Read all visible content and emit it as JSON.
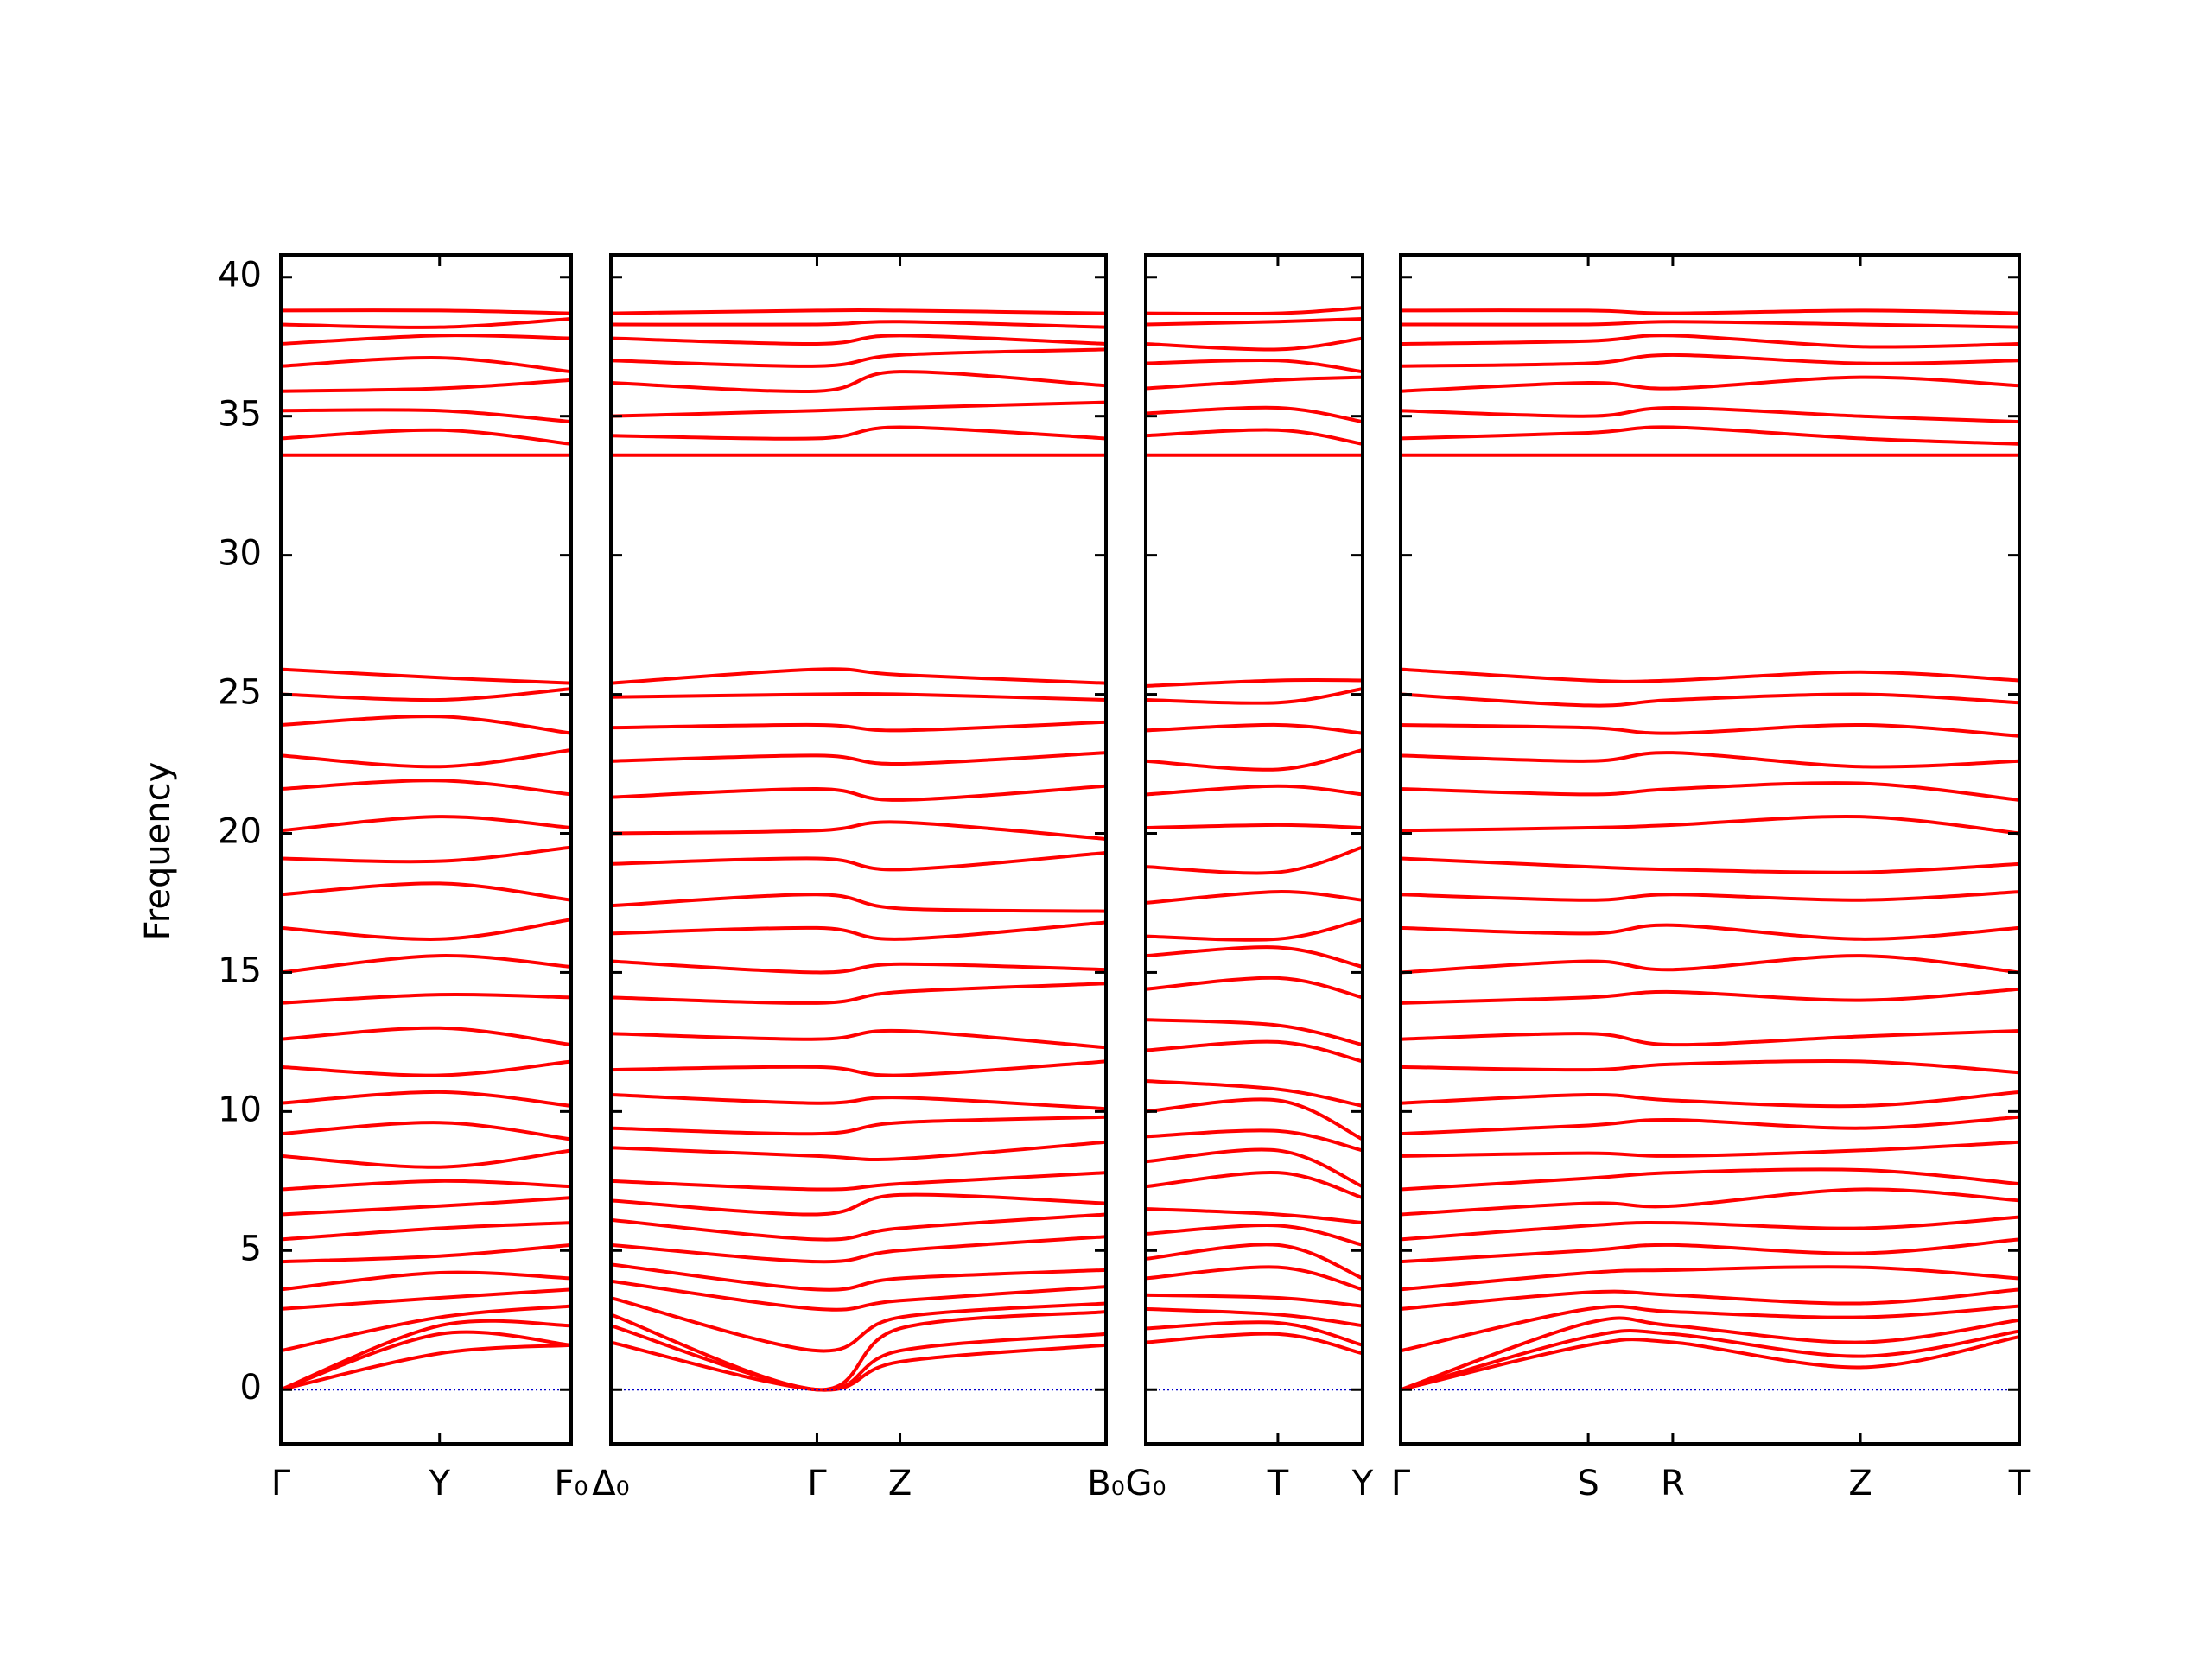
{
  "chart_data": [
    {
      "type": "line",
      "ylabel": "Frequency",
      "color": "#ff0000",
      "hline": 0,
      "hline_color": "#0000cc",
      "show_ytick_labels": true,
      "xlim": [
        0,
        2.03
      ],
      "xticks": [
        {
          "value": 0,
          "label": "Γ"
        },
        {
          "value": 1.11,
          "label": "Y"
        },
        {
          "value": 2.03,
          "label": "F₀"
        }
      ],
      "ylim": [
        -1.95,
        40.8
      ],
      "yticks": [
        0,
        5,
        10,
        15,
        20,
        25,
        30,
        35,
        40
      ],
      "x": [
        0,
        1.11,
        2.03
      ],
      "series": [
        {
          "values": [
            0,
            1.3,
            1.6
          ]
        },
        {
          "values": [
            0,
            2.0,
            1.6
          ]
        },
        {
          "values": [
            0,
            2.3,
            2.3
          ]
        },
        {
          "values": [
            1.4,
            2.6,
            3.0
          ]
        },
        {
          "values": [
            2.9,
            3.3,
            3.6
          ]
        },
        {
          "values": [
            3.6,
            4.2,
            4.0
          ]
        },
        {
          "values": [
            4.6,
            4.8,
            5.2
          ]
        },
        {
          "values": [
            5.4,
            5.8,
            6.0
          ]
        },
        {
          "values": [
            6.3,
            6.6,
            6.9
          ]
        },
        {
          "values": [
            7.2,
            7.5,
            7.3
          ]
        },
        {
          "values": [
            8.4,
            8.0,
            8.6
          ]
        },
        {
          "values": [
            9.2,
            9.6,
            9.0
          ]
        },
        {
          "values": [
            10.3,
            10.7,
            10.2
          ]
        },
        {
          "values": [
            11.6,
            11.3,
            11.8
          ]
        },
        {
          "values": [
            12.6,
            13.0,
            12.4
          ]
        },
        {
          "values": [
            13.9,
            14.2,
            14.1
          ]
        },
        {
          "values": [
            15.0,
            15.6,
            15.2
          ]
        },
        {
          "values": [
            16.6,
            16.2,
            16.9
          ]
        },
        {
          "values": [
            17.8,
            18.2,
            17.6
          ]
        },
        {
          "values": [
            19.1,
            19.0,
            19.5
          ]
        },
        {
          "values": [
            20.1,
            20.6,
            20.2
          ]
        },
        {
          "values": [
            21.6,
            21.9,
            21.4
          ]
        },
        {
          "values": [
            22.8,
            22.4,
            23.0
          ]
        },
        {
          "values": [
            23.9,
            24.2,
            23.6
          ]
        },
        {
          "values": [
            25.0,
            24.8,
            25.2
          ]
        },
        {
          "values": [
            25.9,
            25.6,
            25.4
          ]
        },
        {
          "values": [
            33.6,
            33.6,
            33.6
          ]
        },
        {
          "values": [
            34.2,
            34.5,
            34.0
          ]
        },
        {
          "values": [
            35.2,
            35.2,
            34.8
          ]
        },
        {
          "values": [
            35.9,
            36.0,
            36.3
          ]
        },
        {
          "values": [
            36.8,
            37.1,
            36.6
          ]
        },
        {
          "values": [
            37.6,
            37.9,
            37.8
          ]
        },
        {
          "values": [
            38.3,
            38.2,
            38.5
          ]
        },
        {
          "values": [
            38.8,
            38.8,
            38.7
          ]
        }
      ]
    },
    {
      "type": "line",
      "color": "#ff0000",
      "hline": 0,
      "hline_color": "#0000cc",
      "show_ytick_labels": false,
      "xlim": [
        0,
        3.46
      ],
      "xticks": [
        {
          "value": 0,
          "label": "Δ₀"
        },
        {
          "value": 1.44,
          "label": "Γ"
        },
        {
          "value": 2.02,
          "label": "Z"
        },
        {
          "value": 3.46,
          "label": "B₀"
        }
      ],
      "ylim": [
        -1.95,
        40.8
      ],
      "yticks": [
        0,
        5,
        10,
        15,
        20,
        25,
        30,
        35,
        40
      ],
      "x": [
        0,
        1.44,
        2.02,
        3.46
      ],
      "series": [
        {
          "values": [
            1.7,
            0,
            1.0,
            1.6
          ]
        },
        {
          "values": [
            2.3,
            0,
            1.4,
            2.0
          ]
        },
        {
          "values": [
            2.7,
            0,
            2.2,
            2.8
          ]
        },
        {
          "values": [
            3.3,
            1.4,
            2.6,
            3.1
          ]
        },
        {
          "values": [
            3.9,
            2.9,
            3.2,
            3.7
          ]
        },
        {
          "values": [
            4.5,
            3.6,
            4.0,
            4.3
          ]
        },
        {
          "values": [
            5.2,
            4.6,
            5.0,
            5.5
          ]
        },
        {
          "values": [
            6.1,
            5.4,
            5.8,
            6.3
          ]
        },
        {
          "values": [
            6.8,
            6.3,
            7.0,
            6.7
          ]
        },
        {
          "values": [
            7.5,
            7.2,
            7.4,
            7.8
          ]
        },
        {
          "values": [
            8.7,
            8.4,
            8.3,
            8.9
          ]
        },
        {
          "values": [
            9.4,
            9.2,
            9.6,
            9.8
          ]
        },
        {
          "values": [
            10.6,
            10.3,
            10.5,
            10.1
          ]
        },
        {
          "values": [
            11.5,
            11.6,
            11.3,
            11.8
          ]
        },
        {
          "values": [
            12.8,
            12.6,
            12.9,
            12.3
          ]
        },
        {
          "values": [
            14.1,
            13.9,
            14.3,
            14.6
          ]
        },
        {
          "values": [
            15.4,
            15.0,
            15.3,
            15.1
          ]
        },
        {
          "values": [
            16.4,
            16.6,
            16.2,
            16.8
          ]
        },
        {
          "values": [
            17.4,
            17.8,
            17.3,
            17.2
          ]
        },
        {
          "values": [
            18.9,
            19.1,
            18.7,
            19.3
          ]
        },
        {
          "values": [
            20.0,
            20.1,
            20.4,
            19.8
          ]
        },
        {
          "values": [
            21.3,
            21.6,
            21.2,
            21.7
          ]
        },
        {
          "values": [
            22.6,
            22.8,
            22.5,
            22.9
          ]
        },
        {
          "values": [
            23.8,
            23.9,
            23.7,
            24.0
          ]
        },
        {
          "values": [
            24.9,
            25.0,
            25.0,
            24.8
          ]
        },
        {
          "values": [
            25.4,
            25.9,
            25.7,
            25.4
          ]
        },
        {
          "values": [
            33.6,
            33.6,
            33.6,
            33.6
          ]
        },
        {
          "values": [
            34.3,
            34.2,
            34.6,
            34.2
          ]
        },
        {
          "values": [
            35.0,
            35.2,
            35.3,
            35.5
          ]
        },
        {
          "values": [
            36.2,
            35.9,
            36.6,
            36.1
          ]
        },
        {
          "values": [
            37.0,
            36.8,
            37.2,
            37.4
          ]
        },
        {
          "values": [
            37.8,
            37.6,
            37.9,
            37.6
          ]
        },
        {
          "values": [
            38.3,
            38.3,
            38.4,
            38.2
          ]
        },
        {
          "values": [
            38.7,
            38.8,
            38.8,
            38.7
          ]
        }
      ]
    },
    {
      "type": "line",
      "color": "#ff0000",
      "hline": 0,
      "hline_color": "#0000cc",
      "show_ytick_labels": false,
      "xlim": [
        0,
        1.51
      ],
      "xticks": [
        {
          "value": 0,
          "label": "G₀"
        },
        {
          "value": 0.92,
          "label": "T"
        },
        {
          "value": 1.51,
          "label": "Y"
        }
      ],
      "ylim": [
        -1.95,
        40.8
      ],
      "yticks": [
        0,
        5,
        10,
        15,
        20,
        25,
        30,
        35,
        40
      ],
      "x": [
        0,
        0.92,
        1.51
      ],
      "series": [
        {
          "values": [
            1.7,
            2.0,
            1.3
          ]
        },
        {
          "values": [
            2.2,
            2.4,
            1.6
          ]
        },
        {
          "values": [
            2.9,
            2.7,
            2.3
          ]
        },
        {
          "values": [
            3.4,
            3.3,
            3.0
          ]
        },
        {
          "values": [
            4.0,
            4.4,
            3.6
          ]
        },
        {
          "values": [
            4.7,
            5.2,
            4.0
          ]
        },
        {
          "values": [
            5.6,
            5.9,
            5.2
          ]
        },
        {
          "values": [
            6.5,
            6.3,
            6.0
          ]
        },
        {
          "values": [
            7.3,
            7.8,
            6.9
          ]
        },
        {
          "values": [
            8.2,
            8.6,
            7.3
          ]
        },
        {
          "values": [
            9.1,
            9.3,
            8.6
          ]
        },
        {
          "values": [
            10.0,
            10.4,
            9.0
          ]
        },
        {
          "values": [
            11.1,
            10.8,
            10.2
          ]
        },
        {
          "values": [
            12.2,
            12.5,
            11.8
          ]
        },
        {
          "values": [
            13.3,
            13.1,
            12.4
          ]
        },
        {
          "values": [
            14.4,
            14.8,
            14.1
          ]
        },
        {
          "values": [
            15.6,
            15.9,
            15.2
          ]
        },
        {
          "values": [
            16.3,
            16.2,
            16.9
          ]
        },
        {
          "values": [
            17.5,
            17.9,
            17.6
          ]
        },
        {
          "values": [
            18.8,
            18.6,
            19.5
          ]
        },
        {
          "values": [
            20.2,
            20.3,
            20.2
          ]
        },
        {
          "values": [
            21.4,
            21.7,
            21.4
          ]
        },
        {
          "values": [
            22.6,
            22.3,
            23.0
          ]
        },
        {
          "values": [
            23.7,
            23.9,
            23.6
          ]
        },
        {
          "values": [
            24.8,
            24.7,
            25.2
          ]
        },
        {
          "values": [
            25.3,
            25.5,
            25.5
          ]
        },
        {
          "values": [
            33.6,
            33.6,
            33.6
          ]
        },
        {
          "values": [
            34.3,
            34.5,
            34.0
          ]
        },
        {
          "values": [
            35.1,
            35.3,
            34.8
          ]
        },
        {
          "values": [
            36.0,
            36.3,
            36.4
          ]
        },
        {
          "values": [
            36.9,
            37.0,
            36.6
          ]
        },
        {
          "values": [
            37.6,
            37.4,
            37.8
          ]
        },
        {
          "values": [
            38.3,
            38.4,
            38.5
          ]
        },
        {
          "values": [
            38.7,
            38.7,
            38.9
          ]
        }
      ]
    },
    {
      "type": "line",
      "color": "#ff0000",
      "hline": 0,
      "hline_color": "#0000cc",
      "show_ytick_labels": false,
      "xlim": [
        0,
        4.32
      ],
      "xticks": [
        {
          "value": 0,
          "label": "Γ"
        },
        {
          "value": 1.31,
          "label": "S"
        },
        {
          "value": 1.9,
          "label": "R"
        },
        {
          "value": 3.21,
          "label": "Z"
        },
        {
          "value": 4.32,
          "label": "T"
        }
      ],
      "ylim": [
        -1.95,
        40.8
      ],
      "yticks": [
        0,
        5,
        10,
        15,
        20,
        25,
        30,
        35,
        40
      ],
      "x": [
        0,
        1.31,
        1.9,
        3.21,
        4.32
      ],
      "series": [
        {
          "values": [
            0,
            1.6,
            1.7,
            0.8,
            1.9
          ]
        },
        {
          "values": [
            0,
            1.9,
            2.0,
            1.2,
            2.1
          ]
        },
        {
          "values": [
            0,
            2.4,
            2.3,
            1.7,
            2.5
          ]
        },
        {
          "values": [
            1.4,
            2.9,
            2.8,
            2.6,
            3.0
          ]
        },
        {
          "values": [
            2.9,
            3.5,
            3.4,
            3.1,
            3.6
          ]
        },
        {
          "values": [
            3.6,
            4.2,
            4.3,
            4.4,
            4.0
          ]
        },
        {
          "values": [
            4.6,
            5.0,
            5.2,
            4.9,
            5.4
          ]
        },
        {
          "values": [
            5.4,
            5.9,
            6.0,
            5.8,
            6.2
          ]
        },
        {
          "values": [
            6.3,
            6.7,
            6.6,
            7.2,
            6.8
          ]
        },
        {
          "values": [
            7.2,
            7.6,
            7.8,
            7.9,
            7.4
          ]
        },
        {
          "values": [
            8.4,
            8.5,
            8.4,
            8.6,
            8.9
          ]
        },
        {
          "values": [
            9.2,
            9.5,
            9.7,
            9.4,
            9.8
          ]
        },
        {
          "values": [
            10.3,
            10.6,
            10.4,
            10.2,
            10.7
          ]
        },
        {
          "values": [
            11.6,
            11.5,
            11.7,
            11.8,
            11.4
          ]
        },
        {
          "values": [
            12.6,
            12.8,
            12.4,
            12.7,
            12.9
          ]
        },
        {
          "values": [
            13.9,
            14.1,
            14.3,
            14.0,
            14.4
          ]
        },
        {
          "values": [
            15.0,
            15.4,
            15.1,
            15.6,
            15.0
          ]
        },
        {
          "values": [
            16.6,
            16.4,
            16.7,
            16.2,
            16.6
          ]
        },
        {
          "values": [
            17.8,
            17.6,
            17.8,
            17.6,
            17.9
          ]
        },
        {
          "values": [
            19.1,
            18.8,
            18.7,
            18.6,
            18.9
          ]
        },
        {
          "values": [
            20.1,
            20.2,
            20.3,
            20.6,
            20.0
          ]
        },
        {
          "values": [
            21.6,
            21.4,
            21.6,
            21.8,
            21.2
          ]
        },
        {
          "values": [
            22.8,
            22.6,
            22.9,
            22.4,
            22.6
          ]
        },
        {
          "values": [
            23.9,
            23.8,
            23.6,
            23.9,
            23.5
          ]
        },
        {
          "values": [
            25.0,
            24.6,
            24.8,
            25.0,
            24.7
          ]
        },
        {
          "values": [
            25.9,
            25.5,
            25.5,
            25.8,
            25.5
          ]
        },
        {
          "values": [
            33.6,
            33.6,
            33.6,
            33.6,
            33.6
          ]
        },
        {
          "values": [
            34.2,
            34.4,
            34.6,
            34.2,
            34.0
          ]
        },
        {
          "values": [
            35.2,
            35.0,
            35.3,
            35.0,
            34.8
          ]
        },
        {
          "values": [
            35.9,
            36.2,
            36.0,
            36.4,
            36.1
          ]
        },
        {
          "values": [
            36.8,
            36.9,
            37.2,
            36.9,
            37.0
          ]
        },
        {
          "values": [
            37.6,
            37.7,
            37.9,
            37.5,
            37.6
          ]
        },
        {
          "values": [
            38.3,
            38.3,
            38.4,
            38.3,
            38.2
          ]
        },
        {
          "values": [
            38.8,
            38.8,
            38.7,
            38.8,
            38.7
          ]
        }
      ]
    }
  ]
}
